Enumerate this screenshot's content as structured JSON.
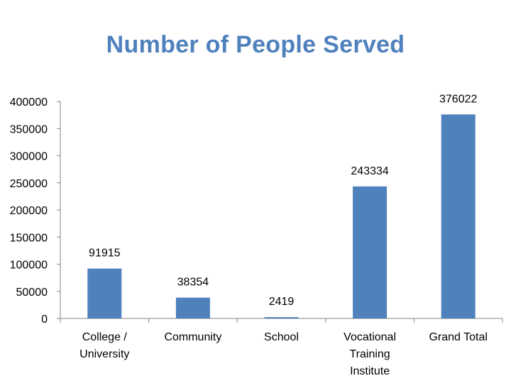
{
  "chart_data": {
    "type": "bar",
    "title": "Number of People Served",
    "xlabel": "",
    "ylabel": "",
    "ylim": [
      0,
      400000
    ],
    "yticks": [
      "0",
      "50000",
      "100000",
      "150000",
      "200000",
      "250000",
      "300000",
      "350000",
      "400000"
    ],
    "categories": [
      "College / University",
      "Community",
      "School",
      "Vocational Training Institute",
      "Grand Total"
    ],
    "category_lines": [
      [
        "College /",
        "University"
      ],
      [
        "Community"
      ],
      [
        "School"
      ],
      [
        "Vocational",
        "Training",
        "Institute"
      ],
      [
        "Grand Total"
      ]
    ],
    "values": [
      91915,
      38354,
      2419,
      243334,
      376022
    ],
    "data_labels": [
      "91915",
      "38354",
      "2419",
      "243334",
      "376022"
    ],
    "bar_color": "#4f81bd",
    "grid": false,
    "legend": "none"
  }
}
